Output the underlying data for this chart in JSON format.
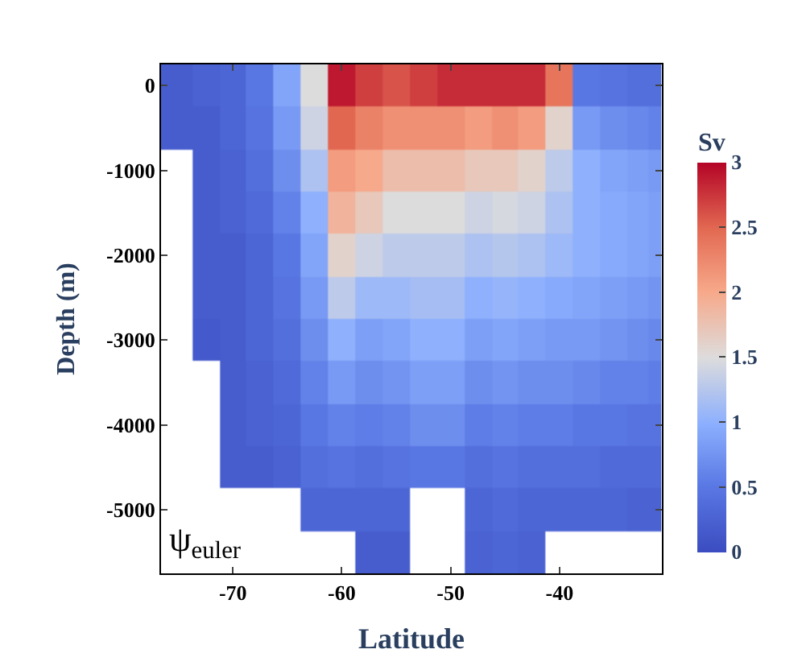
{
  "chart_data": {
    "type": "heatmap",
    "xlabel": "Latitude",
    "ylabel": "Depth (m)",
    "clabel": "Sv",
    "annotations": [
      "ψ$_{euler}$"
    ],
    "x": [
      -76.5,
      -75,
      -72.5,
      -70,
      -67.5,
      -65,
      -62.5,
      -60,
      -57.5,
      -55,
      -52.5,
      -50,
      -47.5,
      -45,
      -42.5,
      -40,
      -37.5,
      -35,
      -32.5,
      -31.3
    ],
    "y_categories": [
      "0",
      null,
      "-1000",
      null,
      "-2000",
      null,
      "-3000",
      null,
      "-4000",
      null,
      "-5000",
      null
    ],
    "cells": [
      [
        0.2,
        0.2,
        0.25,
        0.3,
        0.5,
        0.9,
        1.5,
        2.9,
        2.7,
        2.6,
        2.7,
        2.8,
        2.8,
        2.8,
        2.8,
        2.4,
        0.5,
        0.45,
        0.4,
        0.4
      ],
      [
        0.2,
        0.2,
        0.2,
        0.3,
        0.45,
        0.8,
        1.4,
        2.5,
        2.3,
        2.2,
        2.2,
        2.2,
        2.1,
        2.2,
        2.1,
        1.6,
        0.8,
        0.7,
        0.65,
        0.6
      ],
      [
        null,
        null,
        0.2,
        0.25,
        0.4,
        0.7,
        1.2,
        2.1,
        2.0,
        1.8,
        1.8,
        1.8,
        1.7,
        1.7,
        1.6,
        1.3,
        1.0,
        0.9,
        0.85,
        0.8
      ],
      [
        null,
        null,
        0.2,
        0.25,
        0.35,
        0.6,
        1.0,
        1.9,
        1.7,
        1.5,
        1.5,
        1.5,
        1.4,
        1.45,
        1.4,
        1.2,
        1.0,
        0.95,
        0.9,
        0.85
      ],
      [
        null,
        null,
        0.2,
        0.2,
        0.3,
        0.5,
        0.9,
        1.6,
        1.4,
        1.3,
        1.3,
        1.3,
        1.2,
        1.25,
        1.2,
        1.1,
        1.0,
        0.95,
        0.9,
        0.85
      ],
      [
        null,
        null,
        0.2,
        0.2,
        0.3,
        0.45,
        0.8,
        1.3,
        1.1,
        1.1,
        1.15,
        1.15,
        1.0,
        1.05,
        1.0,
        0.95,
        0.9,
        0.85,
        0.8,
        0.75
      ],
      [
        null,
        null,
        0.15,
        0.2,
        0.3,
        0.4,
        0.7,
        1.0,
        0.85,
        0.9,
        1.0,
        1.0,
        0.85,
        0.9,
        0.85,
        0.8,
        0.8,
        0.75,
        0.7,
        0.65
      ],
      [
        null,
        null,
        null,
        0.2,
        0.25,
        0.35,
        0.6,
        0.8,
        0.7,
        0.75,
        0.85,
        0.85,
        0.7,
        0.75,
        0.7,
        0.7,
        0.65,
        0.6,
        0.6,
        0.55
      ],
      [
        null,
        null,
        null,
        0.2,
        0.25,
        0.3,
        0.5,
        0.6,
        0.55,
        0.6,
        0.7,
        0.7,
        0.55,
        0.6,
        0.55,
        0.55,
        0.5,
        0.5,
        0.45,
        0.45
      ],
      [
        null,
        null,
        null,
        0.2,
        0.2,
        0.25,
        0.4,
        0.45,
        0.4,
        0.45,
        0.5,
        0.5,
        0.4,
        0.45,
        0.4,
        0.4,
        0.4,
        0.35,
        0.35,
        0.35
      ],
      [
        null,
        null,
        null,
        null,
        null,
        null,
        0.3,
        0.3,
        0.3,
        0.3,
        null,
        null,
        0.3,
        0.35,
        0.3,
        0.3,
        0.3,
        0.3,
        0.25,
        0.25
      ],
      [
        null,
        null,
        null,
        null,
        null,
        null,
        null,
        null,
        0.2,
        0.2,
        null,
        null,
        0.25,
        0.3,
        0.25,
        null,
        null,
        null,
        null,
        null
      ]
    ],
    "clim": [
      0,
      3
    ],
    "cticks": [
      0,
      0.5,
      1,
      1.5,
      2,
      2.5,
      3
    ],
    "xlim": [
      -76.6,
      -30.6
    ],
    "xticks": [
      -70,
      -60,
      -50,
      -40
    ]
  }
}
